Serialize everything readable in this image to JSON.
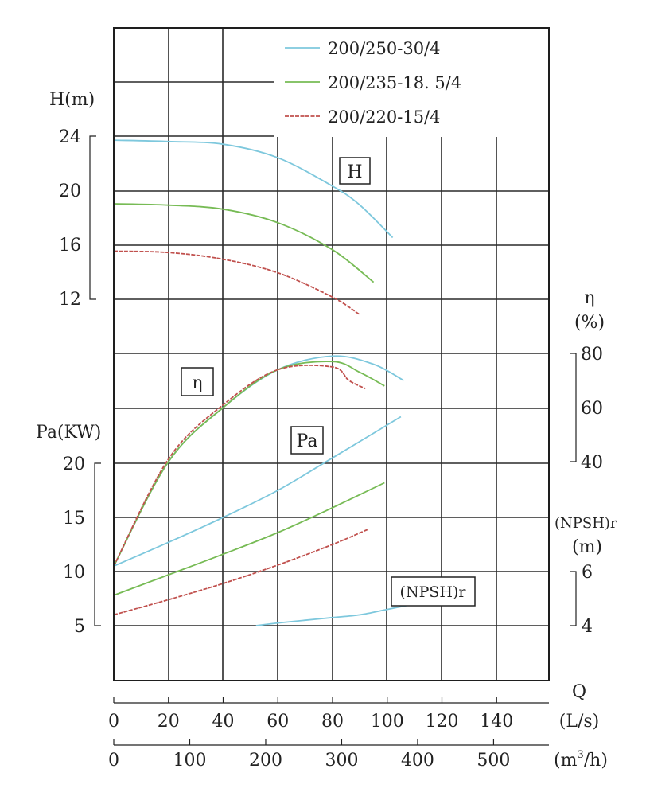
{
  "chart_data": {
    "type": "line",
    "title": "",
    "colors": {
      "200/250-30/4": "#7ec8dd",
      "200/235-18.5/4": "#77bb55",
      "200/220-15/4": "#c0504d"
    },
    "legend": {
      "placement": "top-right",
      "entries": [
        "200/250-30/4",
        "200/235-18. 5/4",
        "200/220-15/4"
      ]
    },
    "x_axes": {
      "ls": {
        "label_q": "Q",
        "unit": "(L/s)",
        "ticks": [
          "0",
          "20",
          "40",
          "60",
          "80",
          "100",
          "120",
          "140"
        ]
      },
      "m3h": {
        "unit_prefix": "(m",
        "unit_sup": "3",
        "unit_suffix": "/h)",
        "ticks": [
          "0",
          "100",
          "200",
          "300",
          "400",
          "500"
        ]
      }
    },
    "y_axes": {
      "head": {
        "label": "H(m)",
        "ticks": [
          "24",
          "20",
          "16",
          "12"
        ],
        "range": [
          12,
          24
        ]
      },
      "power": {
        "label": "Pa(KW)",
        "ticks": [
          "20",
          "15",
          "10",
          "5"
        ],
        "range": [
          5,
          20
        ]
      },
      "efficiency": {
        "label_symbol": "η",
        "label_unit": "(%)",
        "ticks": [
          "80",
          "60",
          "40"
        ],
        "range": [
          40,
          80
        ]
      },
      "npsh": {
        "label": "(NPSH)r",
        "label_unit": "(m)",
        "ticks": [
          "6",
          "4"
        ],
        "range": [
          4,
          6
        ]
      }
    },
    "curve_labels": {
      "head": "H",
      "efficiency": "η",
      "power": "Pa",
      "npsh": "(NPSH)r"
    },
    "grid": true,
    "series": {
      "head": [
        {
          "name": "200/250-30/4",
          "x": [
            0,
            20,
            40,
            60,
            80,
            90,
            102
          ],
          "y": [
            23.7,
            23.6,
            23.4,
            22.4,
            20.3,
            18.9,
            16.5
          ]
        },
        {
          "name": "200/235-18.5/4",
          "x": [
            0,
            20,
            40,
            60,
            80,
            95
          ],
          "y": [
            19.0,
            18.9,
            18.6,
            17.6,
            15.6,
            13.2
          ]
        },
        {
          "name": "200/220-15/4",
          "x": [
            0,
            20,
            40,
            60,
            80,
            90
          ],
          "y": [
            15.5,
            15.4,
            14.9,
            13.9,
            12.1,
            10.8
          ]
        }
      ],
      "efficiency": [
        {
          "name": "200/250-30/4",
          "x": [
            0,
            20,
            40,
            60,
            80,
            95,
            106
          ],
          "y": [
            0,
            40,
            60,
            74,
            79,
            76,
            70
          ]
        },
        {
          "name": "200/235-18.5/4",
          "x": [
            0,
            20,
            40,
            60,
            80,
            90,
            99
          ],
          "y": [
            0,
            40,
            60,
            74,
            77,
            73,
            68
          ]
        },
        {
          "name": "200/220-15/4",
          "x": [
            0,
            20,
            40,
            60,
            80,
            86,
            92
          ],
          "y": [
            0,
            41,
            61,
            74,
            75,
            70,
            67
          ]
        }
      ],
      "power": [
        {
          "name": "200/250-30/4",
          "x": [
            0,
            20,
            40,
            60,
            80,
            105
          ],
          "y": [
            10.5,
            12.7,
            15.0,
            17.5,
            20.5,
            24.3
          ]
        },
        {
          "name": "200/235-18.5/4",
          "x": [
            0,
            20,
            40,
            60,
            80,
            99
          ],
          "y": [
            7.8,
            9.7,
            11.6,
            13.6,
            15.9,
            18.2
          ]
        },
        {
          "name": "200/220-15/4",
          "x": [
            0,
            20,
            40,
            60,
            80,
            93
          ],
          "y": [
            6.0,
            7.4,
            8.9,
            10.6,
            12.5,
            13.9
          ]
        }
      ],
      "npsh": [
        {
          "name": "200/250-30/4",
          "x": [
            52,
            60,
            70,
            80,
            90,
            100,
            110
          ],
          "y": [
            4.0,
            4.1,
            4.2,
            4.3,
            4.4,
            4.6,
            4.8
          ]
        }
      ]
    }
  }
}
